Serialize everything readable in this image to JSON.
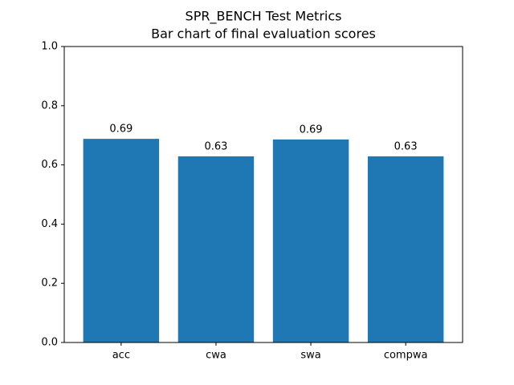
{
  "chart_data": {
    "type": "bar",
    "title": "SPR_BENCH Test Metrics",
    "subtitle": "Bar chart of final evaluation scores",
    "categories": [
      "acc",
      "cwa",
      "swa",
      "compwa"
    ],
    "values": [
      0.688,
      0.629,
      0.686,
      0.629
    ],
    "value_labels": [
      "0.69",
      "0.63",
      "0.69",
      "0.63"
    ],
    "color": "#1f77b4",
    "ylim": [
      0,
      1
    ],
    "yticks": [
      {
        "value": 0,
        "label": "0.0"
      },
      0.2,
      0.4,
      0.6,
      0.8,
      {
        "value": 1,
        "label": "1.0"
      }
    ],
    "grid": false
  }
}
